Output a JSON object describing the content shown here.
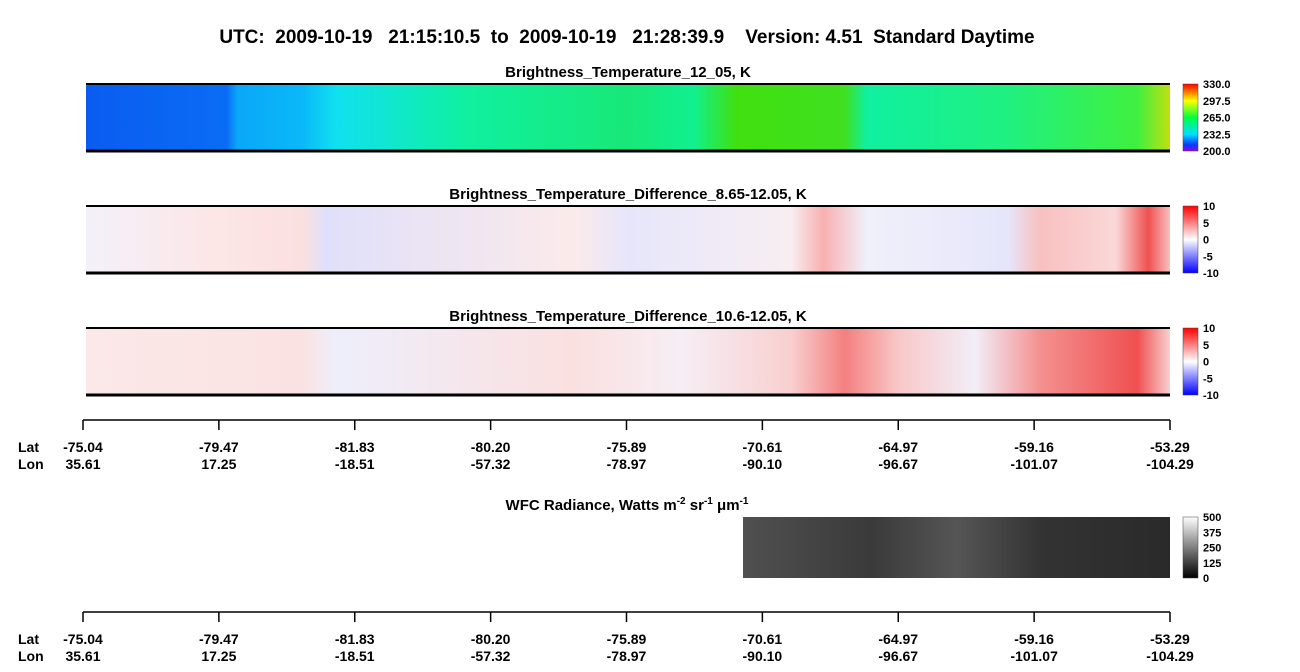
{
  "title": "UTC:  2009-10-19   21:15:10.5  to  2009-10-19   21:28:39.9    Version: 4.51  Standard Daytime",
  "panels": [
    {
      "title": "Brightness_Temperature_12_05, K",
      "colorbar_ticks": [
        "330.0",
        "297.5",
        "265.0",
        "232.5",
        "200.0"
      ]
    },
    {
      "title": "Brightness_Temperature_Difference_8.65-12.05, K",
      "colorbar_ticks": [
        "10",
        "5",
        "0",
        "-5",
        "-10"
      ]
    },
    {
      "title": "Brightness_Temperature_Difference_10.6-12.05, K",
      "colorbar_ticks": [
        "10",
        "5",
        "0",
        "-5",
        "-10"
      ]
    }
  ],
  "wfc": {
    "title": [
      {
        "text": "WFC Radiance, Watts m"
      },
      {
        "sup": "-2"
      },
      {
        "text": " sr"
      },
      {
        "sup": "-1"
      },
      {
        "text": " μm"
      },
      {
        "sup": "-1"
      }
    ],
    "colorbar_ticks": [
      "500",
      "375",
      "250",
      "125",
      "0"
    ]
  },
  "axes": [
    {
      "lat_label": "Lat",
      "lon_label": "Lon",
      "lat": [
        "-75.04",
        "-79.47",
        "-81.83",
        "-80.20",
        "-75.89",
        "-70.61",
        "-64.97",
        "-59.16",
        "-53.29"
      ],
      "lon": [
        "35.61",
        "17.25",
        "-18.51",
        "-57.32",
        "-78.97",
        "-90.10",
        "-96.67",
        "-101.07",
        "-104.29"
      ]
    },
    {
      "lat_label": "Lat",
      "lon_label": "Lon",
      "lat": [
        "-75.04",
        "-79.47",
        "-81.83",
        "-80.20",
        "-75.89",
        "-70.61",
        "-64.97",
        "-59.16",
        "-53.29"
      ],
      "lon": [
        "35.61",
        "17.25",
        "-18.51",
        "-57.32",
        "-78.97",
        "-90.10",
        "-96.67",
        "-101.07",
        "-104.29"
      ]
    }
  ]
}
